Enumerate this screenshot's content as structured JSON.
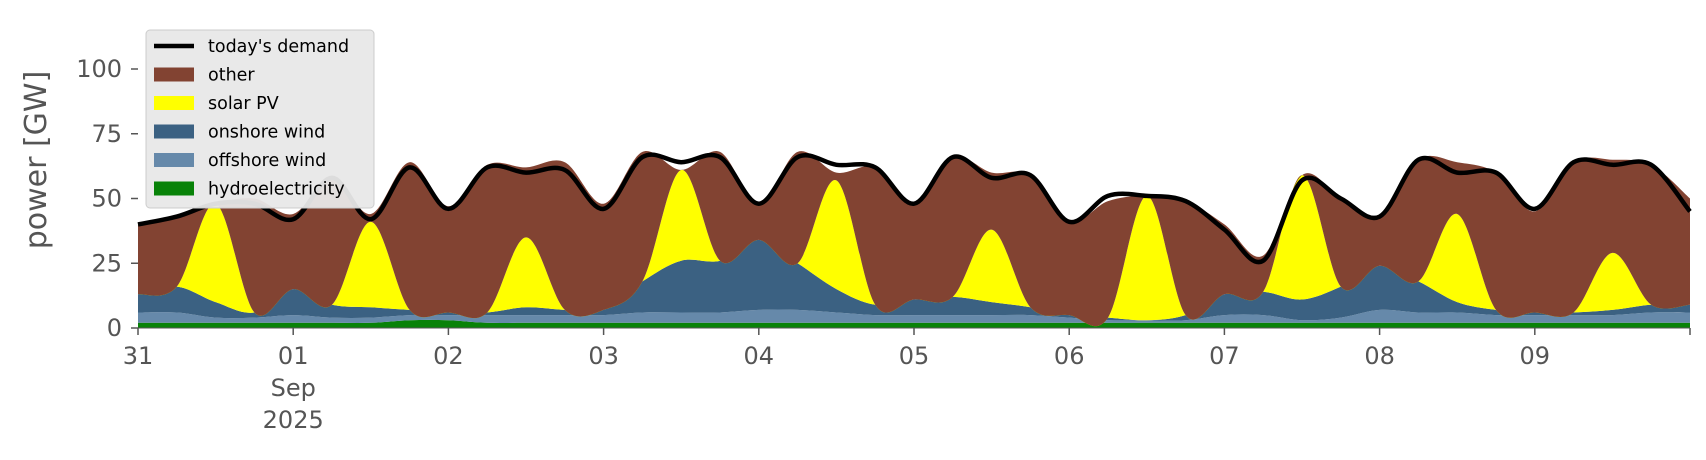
{
  "chart_data": {
    "type": "area",
    "stacked": true,
    "title": "",
    "xlabel": "",
    "ylabel": "power [GW]",
    "ylim": [
      0,
      115
    ],
    "y_ticks": [
      0,
      25,
      50,
      75,
      100
    ],
    "x_range": [
      "2025-08-31 00:00",
      "2025-09-10 00:00"
    ],
    "x_ticks": [
      {
        "at": "2025-08-31",
        "label": "31"
      },
      {
        "at": "2025-09-01",
        "label": "01",
        "sub1": "Sep",
        "sub2": "2025"
      },
      {
        "at": "2025-09-02",
        "label": "02"
      },
      {
        "at": "2025-09-03",
        "label": "03"
      },
      {
        "at": "2025-09-04",
        "label": "04"
      },
      {
        "at": "2025-09-05",
        "label": "05"
      },
      {
        "at": "2025-09-06",
        "label": "06"
      },
      {
        "at": "2025-09-07",
        "label": "07"
      },
      {
        "at": "2025-09-08",
        "label": "08"
      },
      {
        "at": "2025-09-09",
        "label": "09"
      },
      {
        "at": "2025-09-10",
        "label": ""
      }
    ],
    "grid": false,
    "background": "#ffffff",
    "legend_placement": "top-left",
    "legend_order": [
      "today's demand",
      "other",
      "solar PV",
      "onshore wind",
      "offshore wind",
      "hydroelectricity"
    ],
    "x": [
      "2025-08-31 00:00",
      "2025-08-31 06:00",
      "2025-08-31 12:00",
      "2025-08-31 18:00",
      "2025-09-01 00:00",
      "2025-09-01 06:00",
      "2025-09-01 12:00",
      "2025-09-01 18:00",
      "2025-09-02 00:00",
      "2025-09-02 06:00",
      "2025-09-02 12:00",
      "2025-09-02 18:00",
      "2025-09-03 00:00",
      "2025-09-03 06:00",
      "2025-09-03 12:00",
      "2025-09-03 18:00",
      "2025-09-04 00:00",
      "2025-09-04 06:00",
      "2025-09-04 12:00",
      "2025-09-04 18:00",
      "2025-09-05 00:00",
      "2025-09-05 06:00",
      "2025-09-05 12:00",
      "2025-09-05 18:00",
      "2025-09-06 00:00",
      "2025-09-06 06:00",
      "2025-09-06 12:00",
      "2025-09-06 18:00",
      "2025-09-07 00:00",
      "2025-09-07 06:00",
      "2025-09-07 12:00",
      "2025-09-07 18:00",
      "2025-09-08 00:00",
      "2025-09-08 06:00",
      "2025-09-08 12:00",
      "2025-09-08 18:00",
      "2025-09-09 00:00",
      "2025-09-09 06:00",
      "2025-09-09 12:00",
      "2025-09-09 18:00",
      "2025-09-10 00:00"
    ],
    "series": [
      {
        "name": "hydroelectricity",
        "kind": "area",
        "color": "#088208",
        "values": [
          2,
          2,
          2,
          2,
          2,
          2,
          2,
          3,
          3,
          2,
          2,
          2,
          2,
          2,
          2,
          2,
          2,
          2,
          2,
          2,
          2,
          2,
          2,
          2,
          2,
          2,
          2,
          2,
          2,
          2,
          2,
          2,
          2,
          2,
          2,
          2,
          2,
          2,
          2,
          2,
          2
        ]
      },
      {
        "name": "offshore wind",
        "kind": "area",
        "color": "#6689aa",
        "values": [
          4,
          4,
          2,
          2,
          3,
          2,
          2,
          2,
          2,
          3,
          3,
          3,
          3,
          4,
          4,
          4,
          5,
          5,
          4,
          3,
          3,
          3,
          3,
          3,
          2,
          1,
          1,
          1,
          3,
          3,
          1,
          2,
          5,
          4,
          4,
          3,
          3,
          3,
          3,
          4,
          4
        ]
      },
      {
        "name": "onshore wind",
        "kind": "area",
        "color": "#3b6182",
        "values": [
          7,
          10,
          6,
          2,
          10,
          5,
          4,
          2,
          1,
          1,
          3,
          2,
          2,
          12,
          20,
          20,
          27,
          18,
          9,
          4,
          6,
          7,
          5,
          3,
          1,
          1,
          0,
          2,
          8,
          9,
          8,
          12,
          17,
          12,
          4,
          2,
          1,
          1,
          2,
          3,
          3
        ]
      },
      {
        "name": "solar PV",
        "kind": "area",
        "color": "#ffff00",
        "values": [
          0,
          0,
          38,
          0,
          0,
          0,
          33,
          0,
          0,
          0,
          27,
          0,
          0,
          0,
          35,
          0,
          0,
          0,
          42,
          0,
          0,
          0,
          28,
          0,
          0,
          0,
          48,
          0,
          0,
          0,
          48,
          0,
          0,
          0,
          34,
          0,
          0,
          0,
          22,
          0,
          0
        ]
      },
      {
        "name": "other",
        "kind": "area",
        "color": "#824332",
        "values": [
          27,
          27,
          0,
          44,
          29,
          49,
          3,
          57,
          41,
          57,
          27,
          57,
          41,
          50,
          0,
          42,
          14,
          43,
          3,
          53,
          37,
          54,
          22,
          51,
          36,
          45,
          0,
          44,
          27,
          14,
          0,
          34,
          19,
          47,
          20,
          53,
          39,
          58,
          36,
          54,
          41
        ]
      },
      {
        "name": "today's demand",
        "kind": "line",
        "color": "#000000",
        "values": [
          40,
          43,
          48,
          48,
          42,
          58,
          42,
          62,
          46,
          62,
          60,
          61,
          46,
          66,
          64,
          66,
          48,
          66,
          63,
          62,
          48,
          66,
          58,
          59,
          41,
          51,
          51,
          49,
          38,
          26,
          57,
          50,
          43,
          65,
          60,
          60,
          46,
          64,
          63,
          63,
          45
        ]
      }
    ]
  }
}
